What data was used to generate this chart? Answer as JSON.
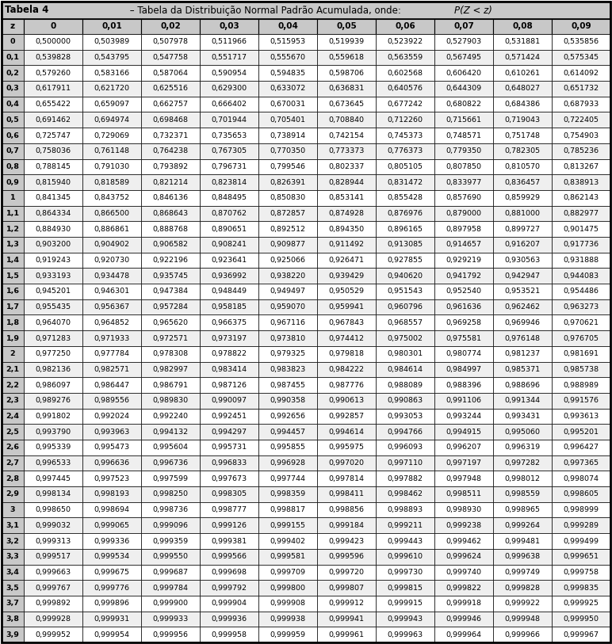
{
  "title_bold": "Tabela 4",
  "title_dash": " – ",
  "title_regular": "Tabela da Distribuição Normal Padrão Acumulada, onde: ",
  "title_italic": "P(Z < z)",
  "col_headers": [
    "0",
    "0,01",
    "0,02",
    "0,03",
    "0,04",
    "0,05",
    "0,06",
    "0,07",
    "0,08",
    "0,09"
  ],
  "row_labels": [
    "0",
    "0,1",
    "0,2",
    "0,3",
    "0,4",
    "0,5",
    "0,6",
    "0,7",
    "0,8",
    "0,9",
    "1",
    "1,1",
    "1,2",
    "1,3",
    "1,4",
    "1,5",
    "1,6",
    "1,7",
    "1,8",
    "1,9",
    "2",
    "2,1",
    "2,2",
    "2,3",
    "2,4",
    "2,5",
    "2,6",
    "2,7",
    "2,8",
    "2,9",
    "3",
    "3,1",
    "3,2",
    "3,3",
    "3,4",
    "3,5",
    "3,7",
    "3,8",
    "3,9"
  ],
  "data": [
    [
      "0,500000",
      "0,503989",
      "0,507978",
      "0,511966",
      "0,515953",
      "0,519939",
      "0,523922",
      "0,527903",
      "0,531881",
      "0,535856"
    ],
    [
      "0,539828",
      "0,543795",
      "0,547758",
      "0,551717",
      "0,555670",
      "0,559618",
      "0,563559",
      "0,567495",
      "0,571424",
      "0,575345"
    ],
    [
      "0,579260",
      "0,583166",
      "0,587064",
      "0,590954",
      "0,594835",
      "0,598706",
      "0,602568",
      "0,606420",
      "0,610261",
      "0,614092"
    ],
    [
      "0,617911",
      "0,621720",
      "0,625516",
      "0,629300",
      "0,633072",
      "0,636831",
      "0,640576",
      "0,644309",
      "0,648027",
      "0,651732"
    ],
    [
      "0,655422",
      "0,659097",
      "0,662757",
      "0,666402",
      "0,670031",
      "0,673645",
      "0,677242",
      "0,680822",
      "0,684386",
      "0,687933"
    ],
    [
      "0,691462",
      "0,694974",
      "0,698468",
      "0,701944",
      "0,705401",
      "0,708840",
      "0,712260",
      "0,715661",
      "0,719043",
      "0,722405"
    ],
    [
      "0,725747",
      "0,729069",
      "0,732371",
      "0,735653",
      "0,738914",
      "0,742154",
      "0,745373",
      "0,748571",
      "0,751748",
      "0,754903"
    ],
    [
      "0,758036",
      "0,761148",
      "0,764238",
      "0,767305",
      "0,770350",
      "0,773373",
      "0,776373",
      "0,779350",
      "0,782305",
      "0,785236"
    ],
    [
      "0,788145",
      "0,791030",
      "0,793892",
      "0,796731",
      "0,799546",
      "0,802337",
      "0,805105",
      "0,807850",
      "0,810570",
      "0,813267"
    ],
    [
      "0,815940",
      "0,818589",
      "0,821214",
      "0,823814",
      "0,826391",
      "0,828944",
      "0,831472",
      "0,833977",
      "0,836457",
      "0,838913"
    ],
    [
      "0,841345",
      "0,843752",
      "0,846136",
      "0,848495",
      "0,850830",
      "0,853141",
      "0,855428",
      "0,857690",
      "0,859929",
      "0,862143"
    ],
    [
      "0,864334",
      "0,866500",
      "0,868643",
      "0,870762",
      "0,872857",
      "0,874928",
      "0,876976",
      "0,879000",
      "0,881000",
      "0,882977"
    ],
    [
      "0,884930",
      "0,886861",
      "0,888768",
      "0,890651",
      "0,892512",
      "0,894350",
      "0,896165",
      "0,897958",
      "0,899727",
      "0,901475"
    ],
    [
      "0,903200",
      "0,904902",
      "0,906582",
      "0,908241",
      "0,909877",
      "0,911492",
      "0,913085",
      "0,914657",
      "0,916207",
      "0,917736"
    ],
    [
      "0,919243",
      "0,920730",
      "0,922196",
      "0,923641",
      "0,925066",
      "0,926471",
      "0,927855",
      "0,929219",
      "0,930563",
      "0,931888"
    ],
    [
      "0,933193",
      "0,934478",
      "0,935745",
      "0,936992",
      "0,938220",
      "0,939429",
      "0,940620",
      "0,941792",
      "0,942947",
      "0,944083"
    ],
    [
      "0,945201",
      "0,946301",
      "0,947384",
      "0,948449",
      "0,949497",
      "0,950529",
      "0,951543",
      "0,952540",
      "0,953521",
      "0,954486"
    ],
    [
      "0,955435",
      "0,956367",
      "0,957284",
      "0,958185",
      "0,959070",
      "0,959941",
      "0,960796",
      "0,961636",
      "0,962462",
      "0,963273"
    ],
    [
      "0,964070",
      "0,964852",
      "0,965620",
      "0,966375",
      "0,967116",
      "0,967843",
      "0,968557",
      "0,969258",
      "0,969946",
      "0,970621"
    ],
    [
      "0,971283",
      "0,971933",
      "0,972571",
      "0,973197",
      "0,973810",
      "0,974412",
      "0,975002",
      "0,975581",
      "0,976148",
      "0,976705"
    ],
    [
      "0,977250",
      "0,977784",
      "0,978308",
      "0,978822",
      "0,979325",
      "0,979818",
      "0,980301",
      "0,980774",
      "0,981237",
      "0,981691"
    ],
    [
      "0,982136",
      "0,982571",
      "0,982997",
      "0,983414",
      "0,983823",
      "0,984222",
      "0,984614",
      "0,984997",
      "0,985371",
      "0,985738"
    ],
    [
      "0,986097",
      "0,986447",
      "0,986791",
      "0,987126",
      "0,987455",
      "0,987776",
      "0,988089",
      "0,988396",
      "0,988696",
      "0,988989"
    ],
    [
      "0,989276",
      "0,989556",
      "0,989830",
      "0,990097",
      "0,990358",
      "0,990613",
      "0,990863",
      "0,991106",
      "0,991344",
      "0,991576"
    ],
    [
      "0,991802",
      "0,992024",
      "0,992240",
      "0,992451",
      "0,992656",
      "0,992857",
      "0,993053",
      "0,993244",
      "0,993431",
      "0,993613"
    ],
    [
      "0,993790",
      "0,993963",
      "0,994132",
      "0,994297",
      "0,994457",
      "0,994614",
      "0,994766",
      "0,994915",
      "0,995060",
      "0,995201"
    ],
    [
      "0,995339",
      "0,995473",
      "0,995604",
      "0,995731",
      "0,995855",
      "0,995975",
      "0,996093",
      "0,996207",
      "0,996319",
      "0,996427"
    ],
    [
      "0,996533",
      "0,996636",
      "0,996736",
      "0,996833",
      "0,996928",
      "0,997020",
      "0,997110",
      "0,997197",
      "0,997282",
      "0,997365"
    ],
    [
      "0,997445",
      "0,997523",
      "0,997599",
      "0,997673",
      "0,997744",
      "0,997814",
      "0,997882",
      "0,997948",
      "0,998012",
      "0,998074"
    ],
    [
      "0,998134",
      "0,998193",
      "0,998250",
      "0,998305",
      "0,998359",
      "0,998411",
      "0,998462",
      "0,998511",
      "0,998559",
      "0,998605"
    ],
    [
      "0,998650",
      "0,998694",
      "0,998736",
      "0,998777",
      "0,998817",
      "0,998856",
      "0,998893",
      "0,998930",
      "0,998965",
      "0,998999"
    ],
    [
      "0,999032",
      "0,999065",
      "0,999096",
      "0,999126",
      "0,999155",
      "0,999184",
      "0,999211",
      "0,999238",
      "0,999264",
      "0,999289"
    ],
    [
      "0,999313",
      "0,999336",
      "0,999359",
      "0,999381",
      "0,999402",
      "0,999423",
      "0,999443",
      "0,999462",
      "0,999481",
      "0,999499"
    ],
    [
      "0,999517",
      "0,999534",
      "0,999550",
      "0,999566",
      "0,999581",
      "0,999596",
      "0,999610",
      "0,999624",
      "0,999638",
      "0,999651"
    ],
    [
      "0,999663",
      "0,999675",
      "0,999687",
      "0,999698",
      "0,999709",
      "0,999720",
      "0,999730",
      "0,999740",
      "0,999749",
      "0,999758"
    ],
    [
      "0,999767",
      "0,999776",
      "0,999784",
      "0,999792",
      "0,999800",
      "0,999807",
      "0,999815",
      "0,999822",
      "0,999828",
      "0,999835"
    ],
    [
      "0,999892",
      "0,999896",
      "0,999900",
      "0,999904",
      "0,999908",
      "0,999912",
      "0,999915",
      "0,999918",
      "0,999922",
      "0,999925"
    ],
    [
      "0,999928",
      "0,999931",
      "0,999933",
      "0,999936",
      "0,999938",
      "0,999941",
      "0,999943",
      "0,999946",
      "0,999948",
      "0,999950"
    ],
    [
      "0,999952",
      "0,999954",
      "0,999956",
      "0,999958",
      "0,999959",
      "0,999961",
      "0,999963",
      "0,999964",
      "0,999966",
      "0,999967"
    ]
  ],
  "header_bg": "#c8c8c8",
  "row_label_bg": "#c8c8c8",
  "alt_row_bg": "#efefef",
  "white_row_bg": "#ffffff",
  "border_color": "#000000",
  "text_color": "#000000",
  "font_size": 6.8,
  "header_font_size": 7.5,
  "title_font_size": 8.5,
  "fig_width": 7.72,
  "fig_height": 8.13,
  "dpi": 100
}
